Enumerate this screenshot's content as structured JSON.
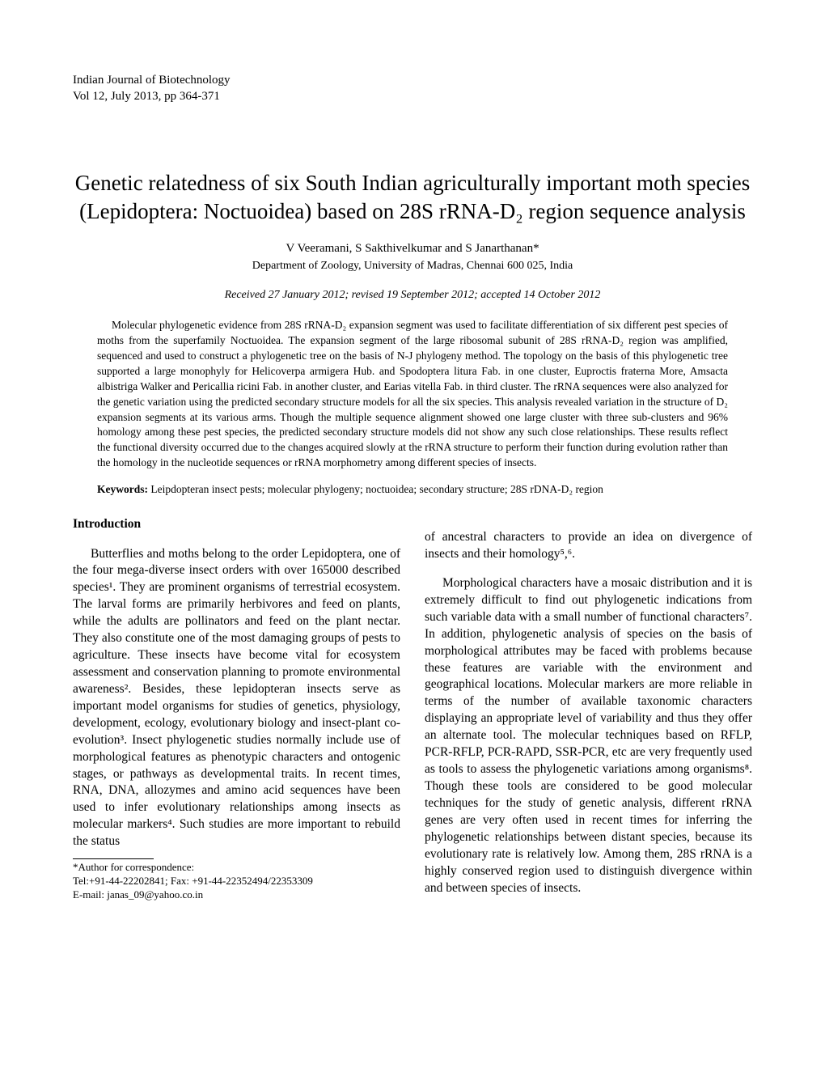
{
  "journal": {
    "name": "Indian Journal of Biotechnology",
    "volume_line": "Vol 12, July 2013, pp 364-371"
  },
  "title": "Genetic relatedness of six South Indian agriculturally important moth species (Lepidoptera: Noctuoidea) based on 28S rRNA-D₂ region sequence analysis",
  "authors": "V Veeramani, S Sakthivelkumar and S Janarthanan*",
  "affiliation": "Department of Zoology, University of Madras, Chennai 600 025, India",
  "dates": "Received 27 January 2012; revised 19 September 2012; accepted 14 October 2012",
  "abstract": "Molecular phylogenetic evidence from 28S rRNA-D₂ expansion segment was used to facilitate differentiation of six different pest species of moths from the superfamily Noctuoidea. The expansion segment of the large ribosomal subunit of 28S rRNA-D₂ region was amplified, sequenced and used to construct a phylogenetic tree on the basis of N-J phylogeny method. The topology on the basis of this phylogenetic tree supported a large monophyly for Helicoverpa armigera Hub. and Spodoptera litura Fab. in one cluster, Euproctis fraterna More, Amsacta albistriga Walker and Pericallia ricini Fab. in another cluster, and Earias vitella Fab. in third cluster. The rRNA sequences were also analyzed for the genetic variation using the predicted secondary structure models for all the six species. This analysis revealed variation in the structure of D₂ expansion segments at its various arms. Though the multiple sequence alignment showed one large cluster with three sub-clusters and 96% homology among these pest species, the predicted secondary structure models did not show any such close relationships. These results reflect the functional diversity occurred due to the changes acquired slowly at the rRNA structure to perform their function during evolution rather than the homology in the nucleotide sequences or rRNA morphometry among different species of insects.",
  "keywords_label": "Keywords:",
  "keywords_text": " Leipdopteran insect pests; molecular phylogeny; noctuoidea; secondary structure; 28S rDNA-D₂ region",
  "introduction_heading": "Introduction",
  "col1_para1": "Butterflies and moths belong to the order Lepidoptera, one of the four mega-diverse insect orders with over 165000 described species¹. They are prominent organisms of terrestrial ecosystem. The larval forms are primarily herbivores and feed on plants, while the adults are pollinators and feed on the plant nectar. They also constitute one of the most damaging groups of pests to agriculture. These insects have become vital for ecosystem assessment and conservation planning to promote environmental awareness². Besides, these lepidopteran insects serve as important model organisms for studies of genetics, physiology, development, ecology, evolutionary biology and insect-plant co-evolution³. Insect phylogenetic studies normally include use of morphological features as phenotypic characters and ontogenic stages, or pathways as developmental traits. In recent times, RNA, DNA, allozymes and amino acid sequences have been used to infer evolutionary relationships among insects as molecular markers⁴. Such studies are more important to rebuild the status",
  "col2_para1": "of ancestral characters to provide an idea on divergence of insects and their homology⁵,⁶.",
  "col2_para2": "Morphological characters have a mosaic distribution and it is extremely difficult to find out phylogenetic indications from such variable data with a small number of functional characters⁷. In addition, phylogenetic analysis of species on the basis of morphological attributes may be faced with problems because these features are variable with the environment and geographical locations. Molecular markers are more reliable in terms of the number of available taxonomic characters displaying an appropriate level of variability and thus they offer an alternate tool. The molecular techniques based on RFLP, PCR-RFLP, PCR-RAPD, SSR-PCR, etc are very frequently used as tools to assess the phylogenetic variations among organisms⁸. Though these tools are considered to be good molecular techniques for the study of genetic analysis, different rRNA genes are very often used in recent times for inferring the phylogenetic relationships between distant species, because its evolutionary rate is relatively low. Among them, 28S rRNA is a highly conserved region used to distinguish divergence within and between species of insects.",
  "footnote_label": "*Author for correspondence:",
  "footnote_tel": "Tel:+91-44-22202841; Fax: +91-44-22352494/22353309",
  "footnote_email_label": "E-mail: ",
  "footnote_email": "janas_09@yahoo.co.in"
}
